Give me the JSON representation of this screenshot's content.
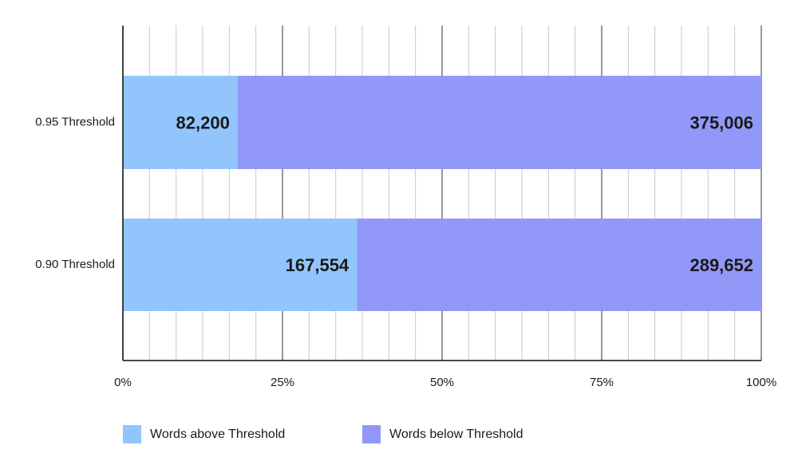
{
  "chart_data": {
    "type": "bar",
    "orientation": "horizontal",
    "stack": "percent",
    "categories": [
      "0.95 Threshold",
      "0.90 Threshold"
    ],
    "series": [
      {
        "name": "Words above Threshold",
        "color": "#93c5fd",
        "values": [
          82200,
          167554
        ],
        "value_labels": [
          "82,200",
          "167,554"
        ]
      },
      {
        "name": "Words below Threshold",
        "color": "#9298f8",
        "values": [
          375006,
          289652
        ],
        "value_labels": [
          "375,006",
          "289,652"
        ]
      }
    ],
    "xlim": [
      0,
      100
    ],
    "xticks": [
      {
        "value": 0,
        "label": "0%"
      },
      {
        "value": 25,
        "label": "25%"
      },
      {
        "value": 50,
        "label": "50%"
      },
      {
        "value": 75,
        "label": "75%"
      },
      {
        "value": 100,
        "label": "100%"
      }
    ],
    "grid": true,
    "legend": "bottom"
  }
}
